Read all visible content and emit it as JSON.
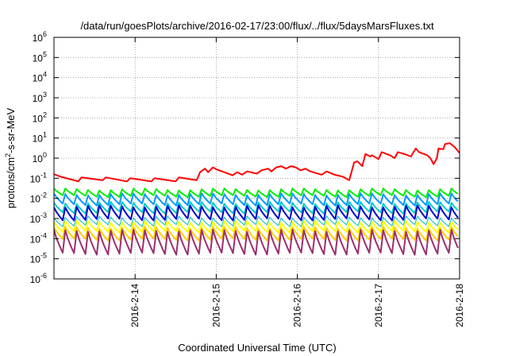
{
  "chart_data": {
    "type": "line",
    "title": "/data/run/goesPlots/archive/2016-02-17/23:00/flux/../flux/5daysMarsFluxes.txt",
    "xlabel": "Coordinated Universal Time (UTC)",
    "ylabel": {
      "base": "protons/cm",
      "sup": "2",
      "rest": "-s-sr-MeV"
    },
    "x_unit": "days since 2016-02-13 00:00 UTC",
    "xlim": [
      0.0,
      5.0
    ],
    "xticks": [
      {
        "x": 1,
        "label": "2016-2-14"
      },
      {
        "x": 2,
        "label": "2016-2-15"
      },
      {
        "x": 3,
        "label": "2016-2-16"
      },
      {
        "x": 4,
        "label": "2016-2-17"
      },
      {
        "x": 5,
        "label": "2016-2-18"
      }
    ],
    "yscale": "log",
    "ylim": [
      1e-06,
      1000000.0
    ],
    "yticks": [
      {
        "exp": "-6"
      },
      {
        "exp": "-5"
      },
      {
        "exp": "-4"
      },
      {
        "exp": "-3"
      },
      {
        "exp": "-2"
      },
      {
        "exp": "-1"
      },
      {
        "exp": "0"
      },
      {
        "exp": "1"
      },
      {
        "exp": "2"
      },
      {
        "exp": "3"
      },
      {
        "exp": "4"
      },
      {
        "exp": "5"
      },
      {
        "exp": "6"
      }
    ],
    "ytick_base": "10",
    "grid": true,
    "sawtooth_period_days": 0.14,
    "series": [
      {
        "color": "#ff0000",
        "width": 2,
        "points": [
          [
            0.0,
            0.16
          ],
          [
            0.08,
            0.12
          ],
          [
            0.2,
            0.09
          ],
          [
            0.3,
            0.07
          ],
          [
            0.34,
            0.11
          ],
          [
            0.6,
            0.08
          ],
          [
            0.64,
            0.11
          ],
          [
            0.9,
            0.07
          ],
          [
            0.94,
            0.1
          ],
          [
            1.2,
            0.07
          ],
          [
            1.24,
            0.1
          ],
          [
            1.5,
            0.07
          ],
          [
            1.54,
            0.11
          ],
          [
            1.76,
            0.08
          ],
          [
            1.8,
            0.2
          ],
          [
            1.86,
            0.3
          ],
          [
            1.9,
            0.2
          ],
          [
            1.96,
            0.35
          ],
          [
            2.0,
            0.28
          ],
          [
            2.1,
            0.2
          ],
          [
            2.2,
            0.14
          ],
          [
            2.26,
            0.2
          ],
          [
            2.32,
            0.15
          ],
          [
            2.38,
            0.22
          ],
          [
            2.5,
            0.17
          ],
          [
            2.56,
            0.25
          ],
          [
            2.64,
            0.3
          ],
          [
            2.68,
            0.22
          ],
          [
            2.74,
            0.35
          ],
          [
            2.8,
            0.4
          ],
          [
            2.86,
            0.3
          ],
          [
            2.92,
            0.4
          ],
          [
            2.98,
            0.35
          ],
          [
            3.04,
            0.25
          ],
          [
            3.1,
            0.3
          ],
          [
            3.16,
            0.22
          ],
          [
            3.3,
            0.15
          ],
          [
            3.36,
            0.22
          ],
          [
            3.46,
            0.15
          ],
          [
            3.56,
            0.12
          ],
          [
            3.64,
            0.08
          ],
          [
            3.7,
            0.6
          ],
          [
            3.74,
            0.7
          ],
          [
            3.8,
            0.4
          ],
          [
            3.84,
            1.6
          ],
          [
            3.9,
            1.2
          ],
          [
            3.92,
            1.4
          ],
          [
            4.0,
            0.9
          ],
          [
            4.04,
            2.0
          ],
          [
            4.14,
            1.4
          ],
          [
            4.2,
            1.0
          ],
          [
            4.24,
            2.0
          ],
          [
            4.34,
            1.5
          ],
          [
            4.4,
            1.2
          ],
          [
            4.46,
            3.0
          ],
          [
            4.5,
            2.0
          ],
          [
            4.6,
            1.4
          ],
          [
            4.64,
            1.0
          ],
          [
            4.68,
            0.5
          ],
          [
            4.72,
            1.0
          ],
          [
            4.74,
            3.0
          ],
          [
            4.8,
            2.8
          ],
          [
            4.82,
            5.0
          ],
          [
            4.88,
            5.5
          ],
          [
            4.94,
            3.5
          ],
          [
            5.0,
            1.8
          ]
        ]
      },
      {
        "color": "#00ee00",
        "width": 2,
        "peak": 0.028,
        "trough": 0.013
      },
      {
        "color": "#0099ff",
        "width": 2,
        "peak": 0.016,
        "trough": 0.005
      },
      {
        "color": "#00cccc",
        "width": 2,
        "peak": 0.006,
        "trough": 0.002
      },
      {
        "color": "#0000cc",
        "width": 2,
        "peak": 0.004,
        "trough": 0.0009
      },
      {
        "color": "#00bbbb",
        "width": 1,
        "peak": 0.0012,
        "trough": 0.00045
      },
      {
        "color": "#ffff00",
        "width": 2,
        "peak": 0.0007,
        "trough": 0.00022
      },
      {
        "color": "#ffcc00",
        "width": 2,
        "peak": 0.00035,
        "trough": 9e-05
      },
      {
        "color": "#9b2f6e",
        "width": 2,
        "peak": 0.00025,
        "trough": 1.8e-05
      }
    ]
  }
}
